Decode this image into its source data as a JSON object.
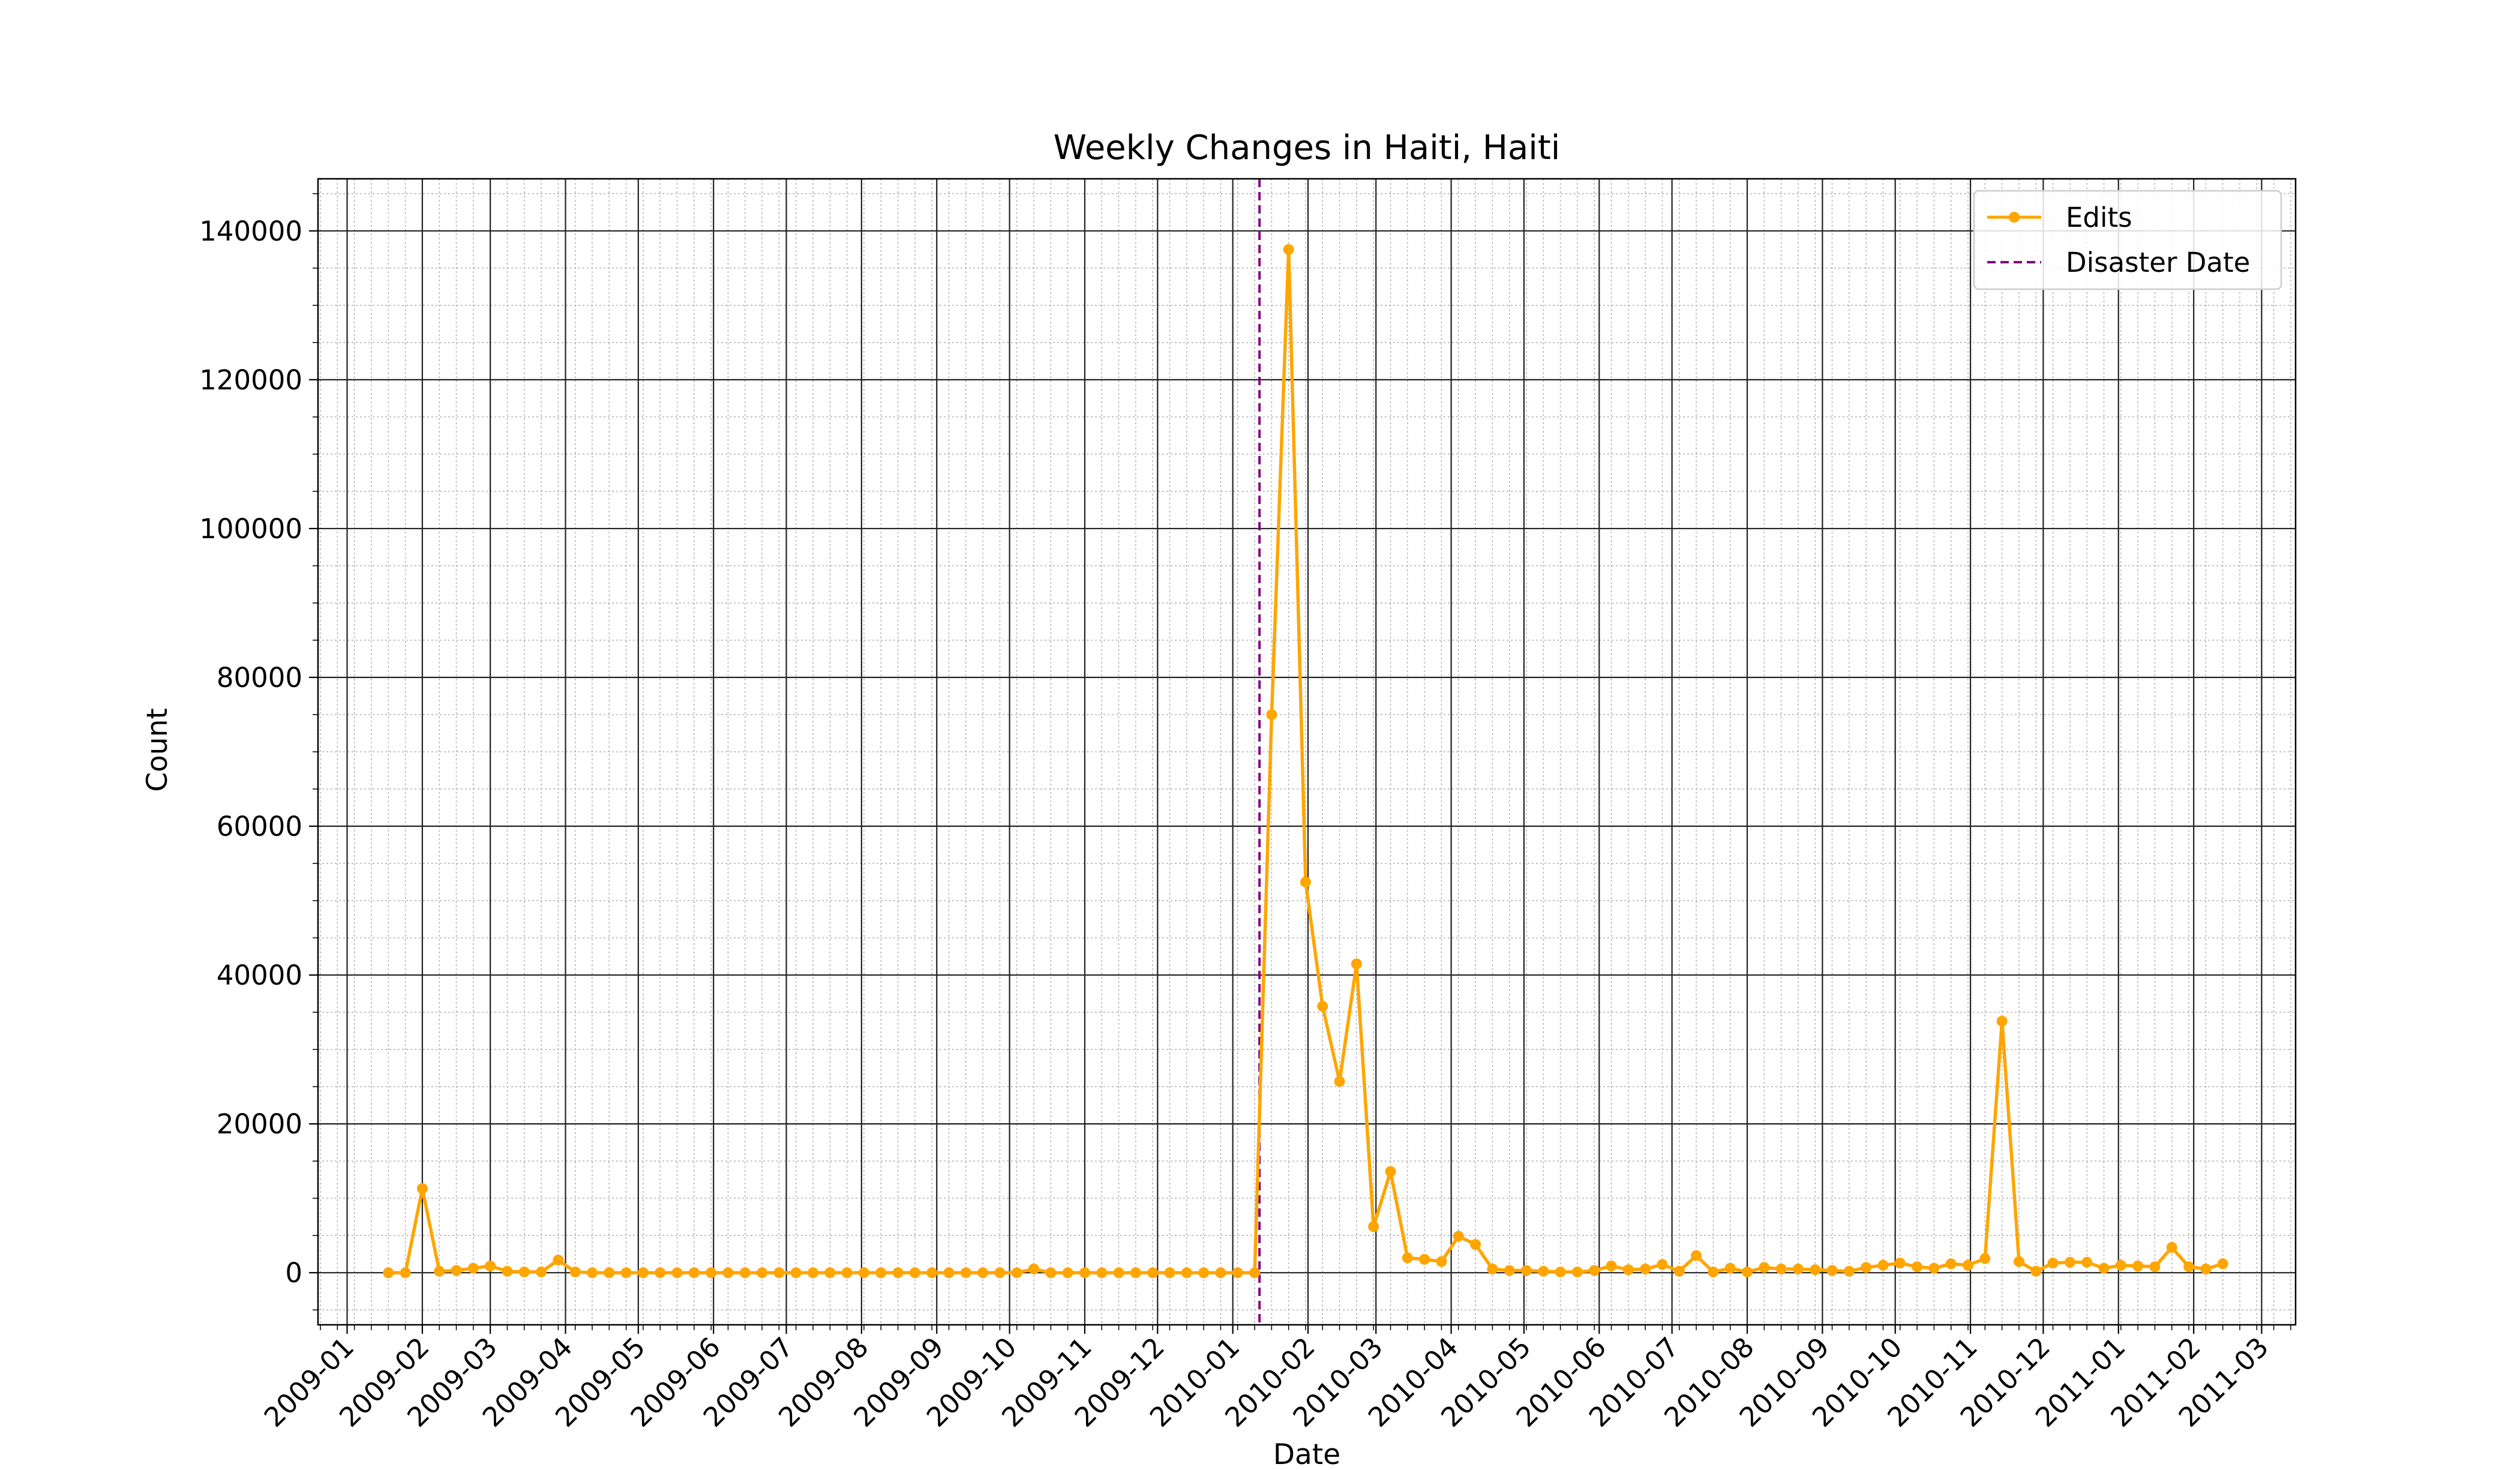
{
  "chart_data": {
    "type": "line",
    "title": "Weekly Changes in Haiti, Haiti",
    "xlabel": "Date",
    "ylabel": "Count",
    "xlim": [
      "2008-12-20",
      "2011-03-15"
    ],
    "ylim": [
      -7000,
      147000
    ],
    "y_ticks": [
      0,
      20000,
      40000,
      60000,
      80000,
      100000,
      120000,
      140000
    ],
    "y_tick_labels": [
      "0",
      "20000",
      "40000",
      "60000",
      "80000",
      "100000",
      "120000",
      "140000"
    ],
    "x_ticks": [
      "2009-01-01",
      "2009-02-01",
      "2009-03-01",
      "2009-04-01",
      "2009-05-01",
      "2009-06-01",
      "2009-07-01",
      "2009-08-01",
      "2009-09-01",
      "2009-10-01",
      "2009-11-01",
      "2009-12-01",
      "2010-01-01",
      "2010-02-01",
      "2010-03-01",
      "2010-04-01",
      "2010-05-01",
      "2010-06-01",
      "2010-07-01",
      "2010-08-01",
      "2010-09-01",
      "2010-10-01",
      "2010-11-01",
      "2010-12-01",
      "2011-01-01",
      "2011-02-01",
      "2011-03-01"
    ],
    "x_tick_labels": [
      "2009-01",
      "2009-02",
      "2009-03",
      "2009-04",
      "2009-05",
      "2009-06",
      "2009-07",
      "2009-08",
      "2009-09",
      "2009-10",
      "2009-11",
      "2009-12",
      "2010-01",
      "2010-02",
      "2010-03",
      "2010-04",
      "2010-05",
      "2010-06",
      "2010-07",
      "2010-08",
      "2010-09",
      "2010-10",
      "2010-11",
      "2010-12",
      "2011-01",
      "2011-02",
      "2011-03"
    ],
    "grid": {
      "major": true,
      "minor": true
    },
    "legend_position": "top-right",
    "series": [
      {
        "name": "Edits",
        "color": "#FFA500",
        "marker": "circle",
        "start_date": "2009-01-18",
        "step_days": 7,
        "values": [
          0,
          0,
          11300,
          200,
          300,
          600,
          900,
          200,
          100,
          100,
          1700,
          100,
          0,
          0,
          0,
          0,
          0,
          0,
          0,
          0,
          0,
          0,
          0,
          0,
          0,
          0,
          0,
          0,
          0,
          0,
          0,
          0,
          0,
          0,
          0,
          0,
          0,
          0,
          500,
          0,
          0,
          0,
          0,
          0,
          0,
          0,
          0,
          0,
          0,
          0,
          0,
          0,
          75000,
          137500,
          52500,
          35800,
          25700,
          41500,
          6200,
          13600,
          2000,
          1800,
          1500,
          4900,
          3800,
          500,
          300,
          300,
          200,
          100,
          100,
          300,
          900,
          400,
          500,
          1100,
          200,
          2300,
          100,
          600,
          100,
          700,
          500,
          500,
          400,
          300,
          200,
          700,
          1000,
          1300,
          800,
          600,
          1200,
          1000,
          1900,
          33800,
          1500,
          200,
          1300,
          1400,
          1400,
          600,
          1000,
          900,
          800,
          3400,
          800,
          500,
          1200
        ]
      }
    ],
    "vlines": [
      {
        "name": "Disaster Date",
        "date": "2010-01-12",
        "color": "#800080",
        "style": "dashed"
      }
    ]
  }
}
